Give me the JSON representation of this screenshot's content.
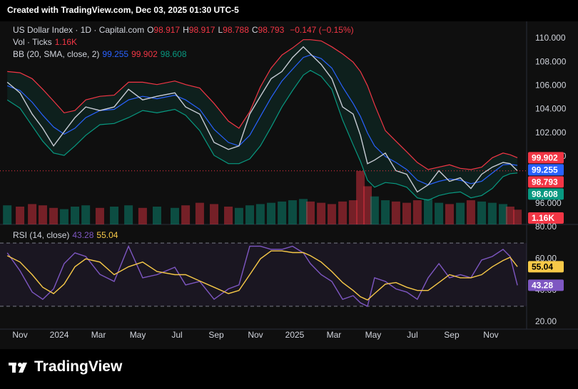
{
  "header": {
    "created": "Created with TradingView.com, Dec 03, 2025 01:30 UTC-5",
    "brand": "TradingView"
  },
  "chart_data": [
    {
      "type": "line",
      "title": "US Dollar Index · 1D · Capital.com",
      "ohlc": [
        {
          "label": "O",
          "value": 98.917
        },
        {
          "label": "H",
          "value": 98.917
        },
        {
          "label": "L",
          "value": 98.788
        },
        {
          "label": "C",
          "value": 98.793
        }
      ],
      "change": "−0.147 (−0.15%)",
      "x": [
        -0.65,
        0,
        0.62,
        1.16,
        1.71,
        2.25,
        2.8,
        3.35,
        4.07,
        4.8,
        5.53,
        6.25,
        6.98,
        7.89,
        8.44,
        9.16,
        9.89,
        10.62,
        11.16,
        11.71,
        12.25,
        12.8,
        13.35,
        13.89,
        14.44,
        14.8,
        15.35,
        15.89,
        16.44,
        16.98,
        17.35,
        17.71,
        18.07,
        18.62,
        19.16,
        19.71,
        20.25,
        20.8,
        21.35,
        21.89,
        22.44,
        22.98,
        23.53,
        24.07,
        24.62,
        24.98,
        25.35
      ],
      "series": [
        {
          "color": "#c7cbd4",
          "values": [
            106.3,
            105.4,
            103.6,
            102.4,
            100.9,
            102.1,
            103.3,
            104.2,
            103.9,
            104.2,
            105.7,
            104.8,
            105.1,
            105.4,
            104.2,
            103.6,
            101.2,
            100.6,
            100.9,
            103.6,
            105.1,
            106.6,
            107.2,
            108.4,
            109.3,
            108.7,
            107.8,
            106.6,
            104.2,
            103.6,
            101.8,
            99.4,
            99.7,
            100.3,
            98.8,
            98.5,
            97.0,
            97.6,
            98.8,
            97.9,
            98.2,
            97.3,
            98.5,
            99.1,
            99.5,
            99.4,
            98.793
          ]
        }
      ],
      "bollinger": {
        "label": "BB (20, SMA, close, 2)",
        "basis": {
          "color": "#2962ff",
          "values": [
            106.0,
            105.6,
            104.6,
            103.5,
            102.5,
            101.9,
            102.4,
            103.3,
            103.9,
            104.0,
            104.8,
            105.1,
            104.9,
            105.2,
            104.8,
            104.0,
            102.3,
            101.2,
            100.9,
            101.8,
            103.4,
            105.0,
            106.4,
            107.4,
            108.4,
            108.6,
            108.3,
            107.5,
            105.9,
            104.5,
            103.4,
            102.0,
            100.9,
            100.0,
            99.5,
            98.9,
            98.0,
            97.6,
            97.9,
            98.1,
            98.0,
            97.7,
            97.9,
            98.6,
            99.3,
            99.35,
            99.255
          ]
        },
        "upper": {
          "color": "#f23645",
          "values": [
            107.2,
            107.1,
            106.6,
            105.7,
            104.7,
            103.7,
            103.9,
            104.8,
            105.1,
            105.2,
            106.3,
            106.3,
            106.1,
            106.4,
            106.1,
            105.8,
            104.5,
            103.0,
            102.4,
            103.8,
            105.9,
            107.5,
            108.6,
            109.2,
            109.9,
            109.9,
            109.8,
            109.3,
            108.7,
            108.0,
            107.2,
            106.0,
            104.4,
            102.2,
            101.3,
            100.4,
            99.5,
            98.9,
            99.1,
            99.3,
            99.0,
            98.9,
            99.1,
            99.9,
            100.3,
            100.15,
            99.902
          ]
        },
        "lower": {
          "color": "#089981",
          "values": [
            104.8,
            104.1,
            102.6,
            101.3,
            100.3,
            100.1,
            100.9,
            101.8,
            102.7,
            102.8,
            103.3,
            103.9,
            103.7,
            104.0,
            103.5,
            102.2,
            100.1,
            99.4,
            99.4,
            99.8,
            100.9,
            102.5,
            104.2,
            105.6,
            106.9,
            107.3,
            106.8,
            105.7,
            103.1,
            101.0,
            99.6,
            98.0,
            97.4,
            97.8,
            97.7,
            97.4,
            96.5,
            96.3,
            96.7,
            96.9,
            97.0,
            96.5,
            96.7,
            97.3,
            98.3,
            98.55,
            98.608
          ]
        }
      },
      "volume": {
        "label": "Vol · Ticks",
        "values": [
          1500,
          1400,
          1600,
          1500,
          1300,
          1200,
          1400,
          1500,
          1300,
          1400,
          1500,
          1300,
          1400,
          1300,
          1500,
          1700,
          1600,
          1400,
          1300,
          1500,
          1600,
          1700,
          1800,
          1900,
          2000,
          1800,
          1700,
          1600,
          1800,
          1900,
          4200,
          3000,
          2200,
          1900,
          1800,
          1700,
          1900,
          2000,
          1700,
          1600,
          1700,
          1900,
          1800,
          1700,
          1600,
          1400,
          1160
        ],
        "value_labels": [
          null,
          null,
          null,
          null,
          null,
          null,
          null,
          null,
          null,
          null,
          null,
          null,
          null,
          null,
          null,
          null,
          null,
          null,
          null,
          null,
          null,
          null,
          null,
          null,
          null,
          null,
          null,
          null,
          null,
          null,
          null,
          null,
          null,
          null,
          null,
          null,
          null,
          null,
          null,
          null,
          null,
          null,
          null,
          null,
          null,
          null,
          "1.16K"
        ]
      },
      "xlim": [
        -1.02,
        25.82
      ],
      "ylim": [
        94.25,
        111.15
      ],
      "yticks": [
        {
          "value": 96,
          "label": "96.000"
        },
        {
          "value": 98,
          "label": "98.000"
        },
        {
          "value": 100,
          "label": "100.000"
        },
        {
          "value": 102,
          "label": "102.000"
        },
        {
          "value": 104,
          "label": "104.000"
        },
        {
          "value": 106,
          "label": "106.000"
        },
        {
          "value": 108,
          "label": "108.000"
        },
        {
          "value": 110,
          "label": "110.000"
        }
      ]
    },
    {
      "type": "line",
      "title": "RSI (14, close)",
      "x": [
        -0.65,
        0,
        0.62,
        1.16,
        1.71,
        2.25,
        2.8,
        3.35,
        4.07,
        4.8,
        5.53,
        6.25,
        6.98,
        7.89,
        8.44,
        9.16,
        9.89,
        10.62,
        11.16,
        11.71,
        12.25,
        12.8,
        13.35,
        13.89,
        14.44,
        14.8,
        15.35,
        15.89,
        16.44,
        16.98,
        17.35,
        17.71,
        18.07,
        18.62,
        19.16,
        19.71,
        20.25,
        20.8,
        21.35,
        21.89,
        22.44,
        22.98,
        23.53,
        24.07,
        24.62,
        24.98,
        25.35
      ],
      "series": [
        {
          "color": "#7e57c2",
          "values": [
            63.8,
            52.5,
            39,
            34.4,
            41,
            57,
            63.8,
            61.5,
            50.2,
            45.7,
            68,
            48,
            50,
            54.7,
            43.5,
            45.7,
            34.4,
            41,
            43.5,
            68,
            68,
            66,
            66,
            68,
            63.8,
            57,
            50,
            45.7,
            34.4,
            36.7,
            32.2,
            30,
            48,
            45.7,
            41,
            39,
            34.4,
            48,
            57,
            48,
            50,
            48,
            59.3,
            61.5,
            66,
            61.5,
            43.28
          ]
        },
        {
          "color": "#f7c948",
          "values": [
            62,
            58,
            50,
            42,
            38,
            44,
            55,
            60,
            58,
            50,
            55,
            58,
            52,
            50,
            50,
            46,
            42,
            38,
            40,
            50,
            60,
            65,
            65,
            64,
            64,
            62,
            58,
            52,
            45,
            40,
            36,
            34,
            38,
            44,
            45,
            42,
            40,
            40,
            45,
            50,
            48,
            48,
            50,
            55,
            59,
            61,
            55.04
          ]
        }
      ],
      "bands": [
        70,
        30
      ],
      "xlim": [
        -1.02,
        25.82
      ],
      "ylim": [
        15.5,
        81.8
      ],
      "yticks": [
        {
          "value": 20,
          "label": "20.00"
        },
        {
          "value": 40,
          "label": "40.00"
        },
        {
          "value": 60,
          "label": "60.00"
        },
        {
          "value": 80,
          "label": "80.00"
        }
      ],
      "xticks": [
        {
          "value": 0,
          "label": "Nov"
        },
        {
          "value": 2,
          "label": "2024"
        },
        {
          "value": 4,
          "label": "Mar"
        },
        {
          "value": 6,
          "label": "May"
        },
        {
          "value": 8,
          "label": "Jul"
        },
        {
          "value": 10,
          "label": "Sep"
        },
        {
          "value": 12,
          "label": "Nov"
        },
        {
          "value": 14,
          "label": "2025"
        },
        {
          "value": 16,
          "label": "Mar"
        },
        {
          "value": 18,
          "label": "May"
        },
        {
          "value": 20,
          "label": "Jul"
        },
        {
          "value": 22,
          "label": "Sep"
        },
        {
          "value": 24,
          "label": "Nov"
        }
      ]
    }
  ]
}
